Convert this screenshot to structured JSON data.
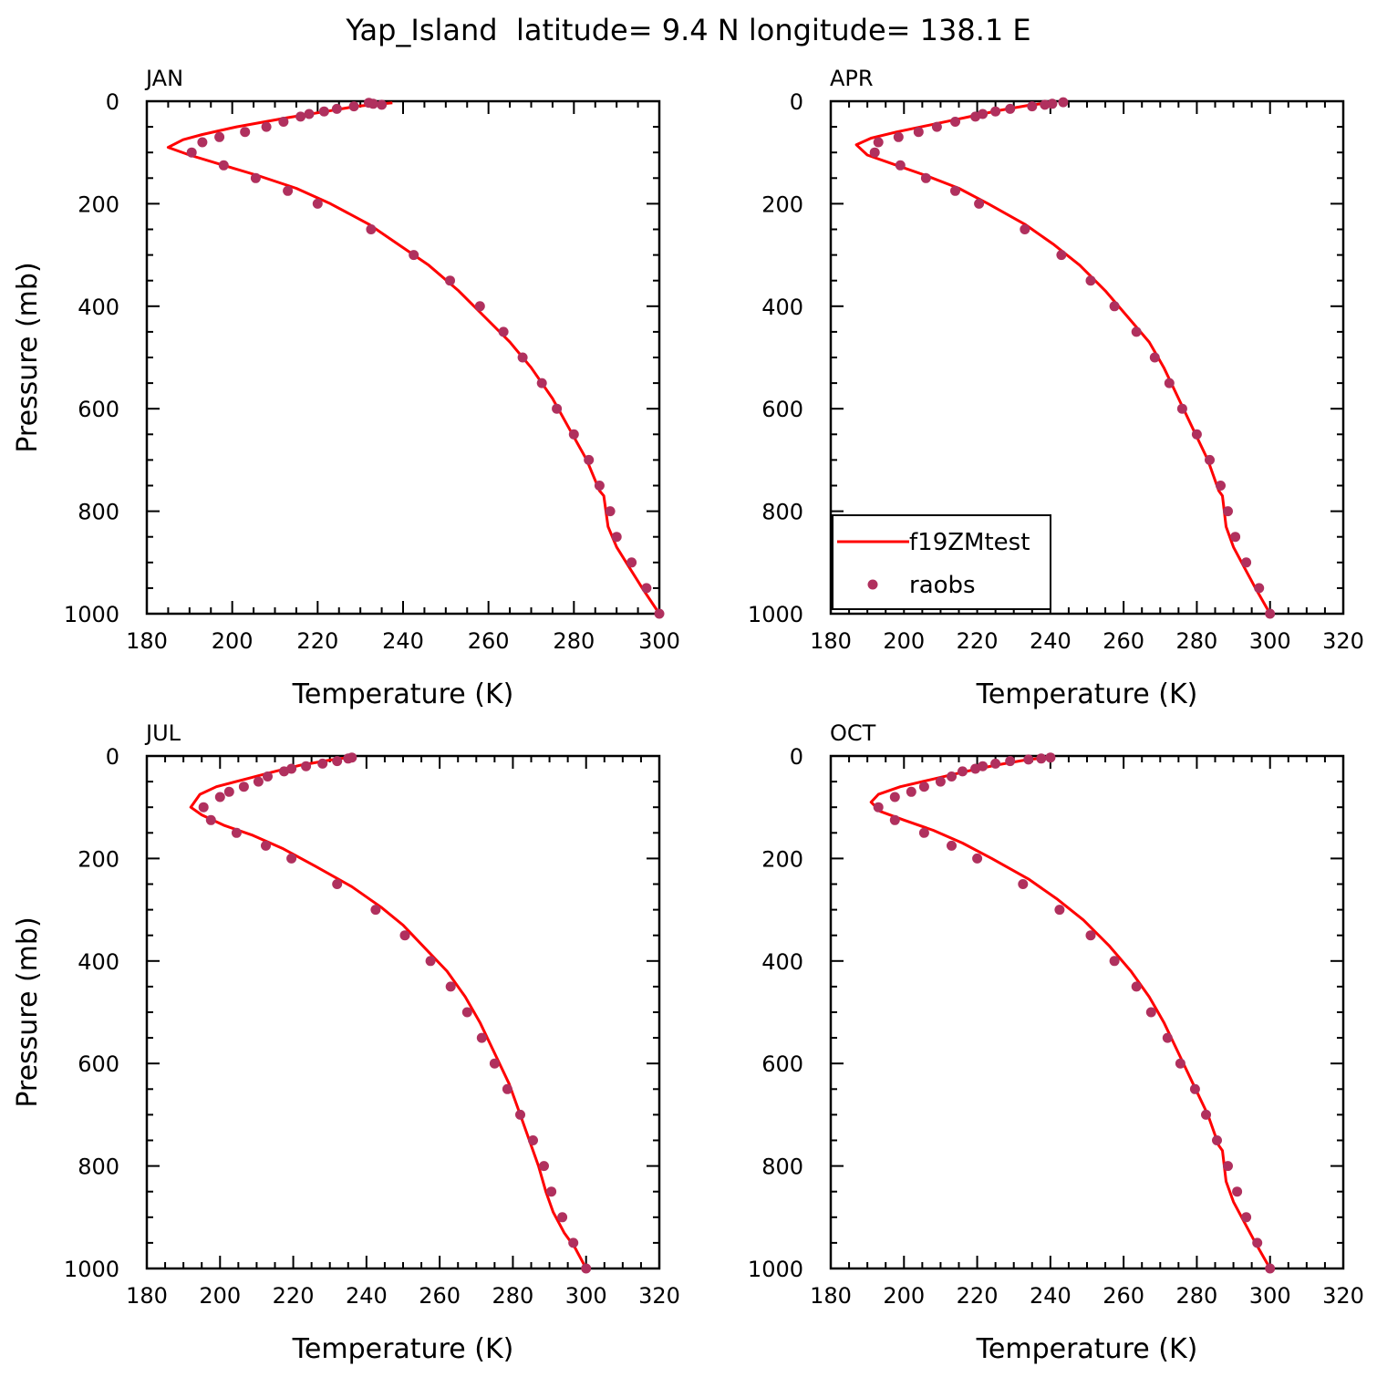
{
  "title": "Yap_Island  latitude= 9.4 N longitude= 138.1 E",
  "colors": {
    "model": "#ff0000",
    "obs": "#b0305e",
    "axis": "#000000"
  },
  "legend": {
    "placement": "bottom-left of APR panel",
    "entries": [
      "f19ZMtest",
      "raobs"
    ]
  },
  "chart_data": [
    {
      "type": "line",
      "panel": "JAN",
      "xlabel": "Temperature (K)",
      "ylabel": "Pressure (mb)",
      "xlim": [
        180,
        300
      ],
      "ylim": [
        1000,
        0
      ],
      "y_reversed": true,
      "xticks": [
        180,
        200,
        220,
        240,
        260,
        280,
        300
      ],
      "yticks": [
        0,
        200,
        400,
        600,
        800,
        1000
      ],
      "series": [
        {
          "name": "f19ZMtest",
          "style": "line",
          "x": [
            237.5,
            229,
            222,
            213,
            201,
            193,
            188.5,
            185,
            190,
            198,
            206,
            215,
            223,
            232,
            239,
            246,
            253,
            259,
            265,
            270,
            275,
            279,
            283,
            286,
            287,
            288,
            290,
            293,
            296,
            300
          ],
          "y": [
            3,
            10,
            20,
            32,
            50,
            65,
            75,
            90,
            105,
            125,
            145,
            170,
            200,
            240,
            280,
            320,
            370,
            420,
            470,
            520,
            580,
            640,
            700,
            760,
            770,
            830,
            870,
            910,
            950,
            1000
          ]
        },
        {
          "name": "raobs",
          "style": "markers",
          "x": [
            235,
            233,
            232,
            228.5,
            224.5,
            221.5,
            218,
            216,
            212,
            208,
            203,
            197,
            193,
            190.5,
            198,
            205.5,
            213,
            220,
            232.5,
            242.5,
            251,
            258,
            263.5,
            268,
            272.5,
            276,
            280,
            283.5,
            286,
            288.5,
            290,
            293.5,
            297,
            300
          ],
          "y": [
            7,
            5,
            3,
            10,
            15,
            20,
            25,
            30,
            40,
            50,
            60,
            70,
            80,
            100,
            125,
            150,
            175,
            200,
            250,
            300,
            350,
            400,
            450,
            500,
            550,
            600,
            650,
            700,
            750,
            800,
            850,
            900,
            950,
            1000
          ]
        }
      ]
    },
    {
      "type": "line",
      "panel": "APR",
      "xlabel": "Temperature (K)",
      "ylabel": "",
      "xlim": [
        180,
        320
      ],
      "ylim": [
        1000,
        0
      ],
      "y_reversed": true,
      "xticks": [
        180,
        200,
        220,
        240,
        260,
        280,
        300,
        320
      ],
      "yticks": [
        0,
        200,
        400,
        600,
        800,
        1000
      ],
      "series": [
        {
          "name": "f19ZMtest",
          "style": "line",
          "x": [
            241,
            234,
            226,
            218,
            208,
            198,
            191,
            187,
            190,
            198,
            206,
            215,
            223,
            233,
            241,
            248,
            255,
            261,
            267,
            271,
            275,
            279,
            283,
            286,
            287,
            288,
            290,
            293,
            296,
            300
          ],
          "y": [
            2,
            8,
            18,
            30,
            45,
            60,
            72,
            85,
            105,
            125,
            145,
            170,
            200,
            240,
            280,
            320,
            370,
            420,
            470,
            520,
            580,
            640,
            700,
            760,
            770,
            830,
            870,
            910,
            950,
            1000
          ]
        },
        {
          "name": "raobs",
          "style": "markers",
          "x": [
            243.5,
            240.5,
            238.5,
            235,
            229,
            225,
            221.5,
            219.5,
            214,
            209,
            204,
            198.5,
            193,
            192,
            199,
            206,
            214,
            220.5,
            233,
            243,
            251,
            257.5,
            263.5,
            268.5,
            272.5,
            276,
            280,
            283.5,
            286.5,
            288.5,
            290.5,
            293.5,
            297,
            300
          ],
          "y": [
            2,
            5,
            7,
            10,
            15,
            20,
            25,
            30,
            40,
            50,
            60,
            70,
            80,
            100,
            125,
            150,
            175,
            200,
            250,
            300,
            350,
            400,
            450,
            500,
            550,
            600,
            650,
            700,
            750,
            800,
            850,
            900,
            950,
            1000
          ]
        }
      ]
    },
    {
      "type": "line",
      "panel": "JUL",
      "xlabel": "Temperature (K)",
      "ylabel": "Pressure (mb)",
      "xlim": [
        180,
        320
      ],
      "ylim": [
        1000,
        0
      ],
      "y_reversed": true,
      "xticks": [
        180,
        200,
        220,
        240,
        260,
        280,
        300,
        320
      ],
      "yticks": [
        0,
        200,
        400,
        600,
        800,
        1000
      ],
      "series": [
        {
          "name": "f19ZMtest",
          "style": "line",
          "x": [
            236,
            230,
            222,
            215,
            207,
            199,
            194.5,
            192,
            195,
            201,
            209,
            217,
            226,
            236,
            244,
            250,
            256,
            262,
            267,
            271,
            275,
            279,
            282,
            285,
            287,
            289,
            291,
            294,
            297,
            300
          ],
          "y": [
            2,
            8,
            18,
            30,
            45,
            60,
            75,
            100,
            115,
            135,
            155,
            180,
            215,
            255,
            295,
            330,
            375,
            420,
            470,
            520,
            580,
            640,
            700,
            760,
            800,
            850,
            890,
            930,
            960,
            1000
          ]
        },
        {
          "name": "raobs",
          "style": "markers",
          "x": [
            236,
            235,
            232,
            228,
            223.5,
            219.5,
            217.5,
            213,
            210.5,
            206.5,
            202.5,
            200,
            195.5,
            197.5,
            204.5,
            212.5,
            219.5,
            232,
            242.5,
            250.5,
            257.5,
            263,
            267.5,
            271.5,
            275,
            278.5,
            282,
            285.5,
            288.5,
            290.5,
            293.5,
            296.5,
            300
          ],
          "y": [
            3,
            5,
            10,
            15,
            20,
            25,
            30,
            40,
            50,
            60,
            70,
            80,
            100,
            125,
            150,
            175,
            200,
            250,
            300,
            350,
            400,
            450,
            500,
            550,
            600,
            650,
            700,
            750,
            800,
            850,
            900,
            950,
            1000
          ]
        }
      ]
    },
    {
      "type": "line",
      "panel": "OCT",
      "xlabel": "Temperature (K)",
      "ylabel": "",
      "xlim": [
        180,
        320
      ],
      "ylim": [
        1000,
        0
      ],
      "y_reversed": true,
      "xticks": [
        180,
        200,
        220,
        240,
        260,
        280,
        300,
        320
      ],
      "yticks": [
        0,
        200,
        400,
        600,
        800,
        1000
      ],
      "series": [
        {
          "name": "f19ZMtest",
          "style": "line",
          "x": [
            240,
            233,
            225,
            217,
            208,
            199,
            193,
            191,
            193.5,
            200,
            208,
            216,
            224,
            234,
            242,
            249,
            256,
            262,
            267,
            271,
            275,
            279,
            283,
            286,
            287,
            288,
            290,
            293,
            296,
            300
          ],
          "y": [
            2,
            8,
            18,
            30,
            45,
            60,
            75,
            90,
            108,
            125,
            145,
            170,
            200,
            240,
            280,
            320,
            370,
            420,
            470,
            520,
            580,
            640,
            700,
            760,
            770,
            830,
            870,
            910,
            950,
            1000
          ]
        },
        {
          "name": "raobs",
          "style": "markers",
          "x": [
            240,
            237.5,
            234,
            229,
            225,
            221.5,
            219.5,
            216,
            213,
            210,
            205.5,
            202,
            197.5,
            193,
            197.5,
            205.5,
            213,
            220,
            232.5,
            242.5,
            251,
            257.5,
            263.5,
            267.5,
            272,
            275.5,
            279.5,
            282.5,
            285.5,
            288.5,
            291,
            293.5,
            296.5,
            300
          ],
          "y": [
            3,
            5,
            7,
            10,
            15,
            20,
            25,
            30,
            40,
            50,
            60,
            70,
            80,
            100,
            125,
            150,
            175,
            200,
            250,
            300,
            350,
            400,
            450,
            500,
            550,
            600,
            650,
            700,
            750,
            800,
            850,
            900,
            950,
            1000
          ]
        }
      ]
    }
  ]
}
